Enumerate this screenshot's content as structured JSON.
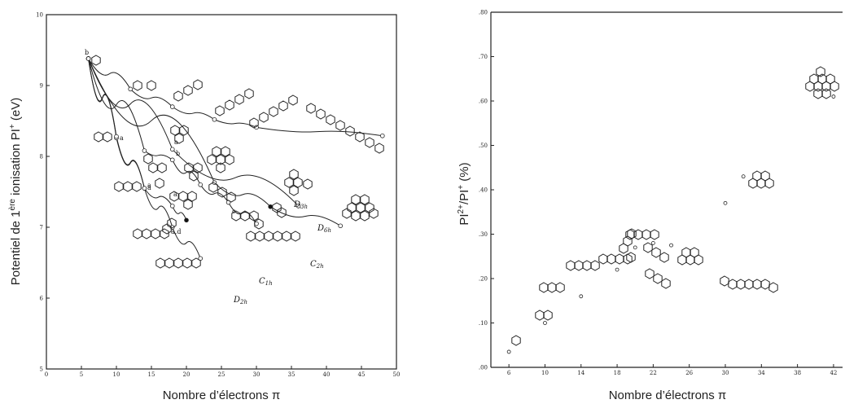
{
  "left_chart": {
    "xlabel": "Nombre d’électrons π",
    "ylabel_main": "Potentiel de 1",
    "ylabel_sup": "ère",
    "ylabel_rest": " ionisation PI",
    "ylabel_sup2": "+",
    "ylabel_unit": " (eV)"
  },
  "right_chart": {
    "xlabel": "Nombre d’électrons π",
    "ylabel_a": "PI",
    "ylabel_sup_a": "2+",
    "ylabel_b": "/PI",
    "ylabel_sup_b": "+",
    "ylabel_c": " (%)"
  },
  "chart_data": [
    {
      "type": "scatter",
      "xlabel": "Nombre d’électrons π",
      "ylabel": "Potentiel de 1ère ionisation PI+ (eV)",
      "xlim": [
        0,
        50
      ],
      "ylim": [
        5,
        10
      ],
      "xticks": [
        "0",
        "5",
        "10",
        "15",
        "20",
        "25",
        "30",
        "35",
        "40",
        "45",
        "50"
      ],
      "yticks": [
        "5",
        "6",
        "7",
        "8",
        "9",
        "10"
      ],
      "grid": false,
      "series": [
        {
          "name": "",
          "points": [
            [
              6,
              9.38
            ],
            [
              12,
              8.95
            ],
            [
              18,
              8.7
            ],
            [
              24,
              8.52
            ],
            [
              30,
              8.41
            ],
            [
              48,
              8.29
            ]
          ]
        },
        {
          "name": "D3h",
          "points": [
            [
              6,
              9.38
            ],
            [
              18,
              8.1
            ],
            [
              36,
              7.3
            ]
          ]
        },
        {
          "name": "D6h",
          "points": [
            [
              6,
              9.38
            ],
            [
              24,
              7.63
            ],
            [
              32,
              7.29
            ],
            [
              42,
              7.02
            ]
          ]
        },
        {
          "name": "C2h",
          "points": [
            [
              6,
              9.38
            ],
            [
              14,
              8.08
            ],
            [
              18,
              7.95
            ],
            [
              22,
              7.6
            ],
            [
              26,
              7.35
            ],
            [
              30,
              7.05
            ]
          ]
        },
        {
          "name": "C1h",
          "points": [
            [
              6,
              9.38
            ],
            [
              10,
              8.26
            ],
            [
              14,
              7.55
            ],
            [
              18,
              7.3
            ],
            [
              20,
              7.1
            ]
          ]
        },
        {
          "name": "D2h",
          "points": [
            [
              6,
              9.38
            ],
            [
              10,
              8.28
            ],
            [
              14,
              7.55
            ],
            [
              18,
              7.0
            ],
            [
              22,
              6.56
            ]
          ]
        }
      ],
      "curve_labels": [
        "b",
        "a",
        "a",
        "b",
        "a",
        "a",
        "a",
        "a,d",
        "c",
        "D3h",
        "D6h",
        "C2h",
        "C1h",
        "D2h"
      ]
    },
    {
      "type": "scatter",
      "xlabel": "Nombre d’électrons π",
      "ylabel": "PI2+/PI+ (%)",
      "xlim": [
        4,
        43
      ],
      "ylim": [
        0,
        0.8
      ],
      "xticks": [
        "6",
        "10",
        "14",
        "18",
        "22",
        "26",
        "30",
        "34",
        "38",
        "42"
      ],
      "yticks": [
        ".00",
        ".10",
        ".20",
        ".30",
        ".40",
        ".50",
        ".60",
        ".70",
        ".80"
      ],
      "grid": false,
      "points": [
        [
          6,
          0.035
        ],
        [
          10,
          0.1
        ],
        [
          14,
          0.16
        ],
        [
          18,
          0.22
        ],
        [
          20,
          0.27
        ],
        [
          22,
          0.28
        ],
        [
          24,
          0.275
        ],
        [
          30,
          0.37
        ],
        [
          32,
          0.43
        ],
        [
          42,
          0.61
        ]
      ]
    }
  ]
}
